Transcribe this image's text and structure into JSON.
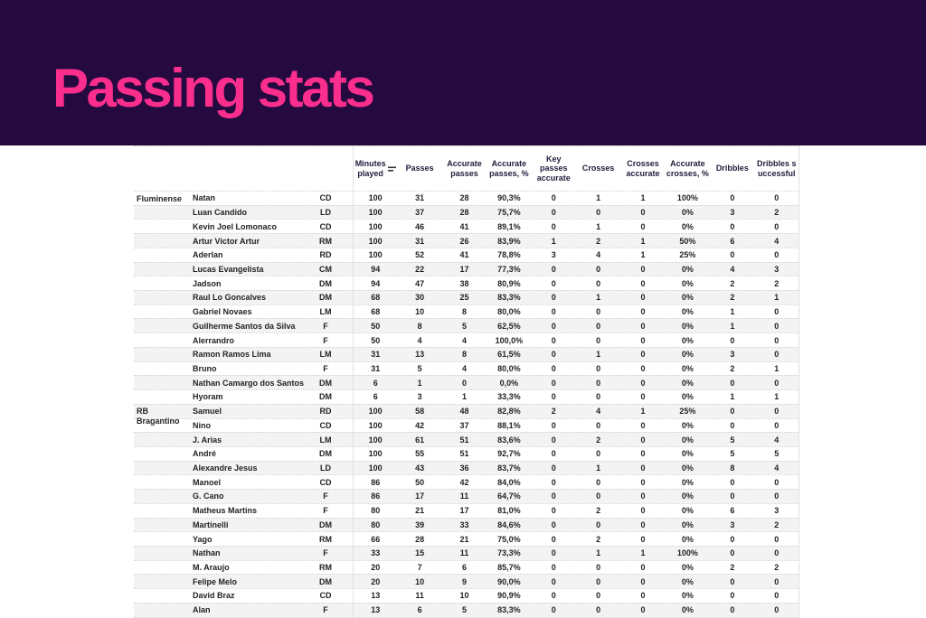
{
  "banner": {
    "title": "Passing stats"
  },
  "colors": {
    "banner_bg": "#250a40",
    "title_pink": "#fb2e8e",
    "row_stripe": "#f3f3f3",
    "header_text": "#1d1d3c"
  },
  "table": {
    "sort_icon": "sort-lines-icon",
    "sorted_column": "Minutes played",
    "columns": [
      "Minutes played",
      "Passes",
      "Accurate passes",
      "Accurate passes, %",
      "Key passes accurate",
      "Crosses",
      "Crosses accurate",
      "Accurate crosses, %",
      "Dribbles",
      "Dribbles successful"
    ],
    "teams": [
      {
        "name": "Fluminense",
        "players": [
          {
            "name": "Natan",
            "pos": "CD",
            "stats": [
              "100",
              "31",
              "28",
              "90,3%",
              "0",
              "1",
              "1",
              "100%",
              "0",
              "0"
            ]
          },
          {
            "name": "Luan Candido",
            "pos": "LD",
            "stats": [
              "100",
              "37",
              "28",
              "75,7%",
              "0",
              "0",
              "0",
              "0%",
              "3",
              "2"
            ]
          },
          {
            "name": "Kevin Joel Lomonaco",
            "pos": "CD",
            "stats": [
              "100",
              "46",
              "41",
              "89,1%",
              "0",
              "1",
              "0",
              "0%",
              "0",
              "0"
            ]
          },
          {
            "name": "Artur Victor Artur",
            "pos": "RM",
            "stats": [
              "100",
              "31",
              "26",
              "83,9%",
              "1",
              "2",
              "1",
              "50%",
              "6",
              "4"
            ]
          },
          {
            "name": "Aderlan",
            "pos": "RD",
            "stats": [
              "100",
              "52",
              "41",
              "78,8%",
              "3",
              "4",
              "1",
              "25%",
              "0",
              "0"
            ]
          },
          {
            "name": "Lucas Evangelista",
            "pos": "CM",
            "stats": [
              "94",
              "22",
              "17",
              "77,3%",
              "0",
              "0",
              "0",
              "0%",
              "4",
              "3"
            ]
          },
          {
            "name": "Jadson",
            "pos": "DM",
            "stats": [
              "94",
              "47",
              "38",
              "80,9%",
              "0",
              "0",
              "0",
              "0%",
              "2",
              "2"
            ]
          },
          {
            "name": "Raul Lo Goncalves",
            "pos": "DM",
            "stats": [
              "68",
              "30",
              "25",
              "83,3%",
              "0",
              "1",
              "0",
              "0%",
              "2",
              "1"
            ]
          },
          {
            "name": "Gabriel Novaes",
            "pos": "LM",
            "stats": [
              "68",
              "10",
              "8",
              "80,0%",
              "0",
              "0",
              "0",
              "0%",
              "1",
              "0"
            ]
          },
          {
            "name": "Guilherme Santos da Silva",
            "pos": "F",
            "stats": [
              "50",
              "8",
              "5",
              "62,5%",
              "0",
              "0",
              "0",
              "0%",
              "1",
              "0"
            ]
          },
          {
            "name": "Alerrandro",
            "pos": "F",
            "stats": [
              "50",
              "4",
              "4",
              "100,0%",
              "0",
              "0",
              "0",
              "0%",
              "0",
              "0"
            ]
          },
          {
            "name": "Ramon Ramos Lima",
            "pos": "LM",
            "stats": [
              "31",
              "13",
              "8",
              "61,5%",
              "0",
              "1",
              "0",
              "0%",
              "3",
              "0"
            ]
          },
          {
            "name": "Bruno",
            "pos": "F",
            "stats": [
              "31",
              "5",
              "4",
              "80,0%",
              "0",
              "0",
              "0",
              "0%",
              "2",
              "1"
            ]
          },
          {
            "name": "Nathan Camargo dos Santos",
            "pos": "DM",
            "stats": [
              "6",
              "1",
              "0",
              "0,0%",
              "0",
              "0",
              "0",
              "0%",
              "0",
              "0"
            ]
          },
          {
            "name": "Hyoram",
            "pos": "DM",
            "stats": [
              "6",
              "3",
              "1",
              "33,3%",
              "0",
              "0",
              "0",
              "0%",
              "1",
              "1"
            ]
          }
        ]
      },
      {
        "name": "RB Bragantino",
        "players": [
          {
            "name": "Samuel",
            "pos": "RD",
            "stats": [
              "100",
              "58",
              "48",
              "82,8%",
              "2",
              "4",
              "1",
              "25%",
              "0",
              "0"
            ]
          },
          {
            "name": "Nino",
            "pos": "CD",
            "stats": [
              "100",
              "42",
              "37",
              "88,1%",
              "0",
              "0",
              "0",
              "0%",
              "0",
              "0"
            ]
          },
          {
            "name": "J. Arias",
            "pos": "LM",
            "stats": [
              "100",
              "61",
              "51",
              "83,6%",
              "0",
              "2",
              "0",
              "0%",
              "5",
              "4"
            ]
          },
          {
            "name": "André",
            "pos": "DM",
            "stats": [
              "100",
              "55",
              "51",
              "92,7%",
              "0",
              "0",
              "0",
              "0%",
              "5",
              "5"
            ]
          },
          {
            "name": "Alexandre Jesus",
            "pos": "LD",
            "stats": [
              "100",
              "43",
              "36",
              "83,7%",
              "0",
              "1",
              "0",
              "0%",
              "8",
              "4"
            ]
          },
          {
            "name": "Manoel",
            "pos": "CD",
            "stats": [
              "86",
              "50",
              "42",
              "84,0%",
              "0",
              "0",
              "0",
              "0%",
              "0",
              "0"
            ]
          },
          {
            "name": "G. Cano",
            "pos": "F",
            "stats": [
              "86",
              "17",
              "11",
              "64,7%",
              "0",
              "0",
              "0",
              "0%",
              "0",
              "0"
            ]
          },
          {
            "name": "Matheus Martins",
            "pos": "F",
            "stats": [
              "80",
              "21",
              "17",
              "81,0%",
              "0",
              "2",
              "0",
              "0%",
              "6",
              "3"
            ]
          },
          {
            "name": "Martinelli",
            "pos": "DM",
            "stats": [
              "80",
              "39",
              "33",
              "84,6%",
              "0",
              "0",
              "0",
              "0%",
              "3",
              "2"
            ]
          },
          {
            "name": "Yago",
            "pos": "RM",
            "stats": [
              "66",
              "28",
              "21",
              "75,0%",
              "0",
              "2",
              "0",
              "0%",
              "0",
              "0"
            ]
          },
          {
            "name": "Nathan",
            "pos": "F",
            "stats": [
              "33",
              "15",
              "11",
              "73,3%",
              "0",
              "1",
              "1",
              "100%",
              "0",
              "0"
            ]
          },
          {
            "name": "M. Araujo",
            "pos": "RM",
            "stats": [
              "20",
              "7",
              "6",
              "85,7%",
              "0",
              "0",
              "0",
              "0%",
              "2",
              "2"
            ]
          },
          {
            "name": "Felipe Melo",
            "pos": "DM",
            "stats": [
              "20",
              "10",
              "9",
              "90,0%",
              "0",
              "0",
              "0",
              "0%",
              "0",
              "0"
            ]
          },
          {
            "name": "David Braz",
            "pos": "CD",
            "stats": [
              "13",
              "11",
              "10",
              "90,9%",
              "0",
              "0",
              "0",
              "0%",
              "0",
              "0"
            ]
          },
          {
            "name": "Alan",
            "pos": "F",
            "stats": [
              "13",
              "6",
              "5",
              "83,3%",
              "0",
              "0",
              "0",
              "0%",
              "0",
              "0"
            ]
          }
        ]
      }
    ]
  }
}
